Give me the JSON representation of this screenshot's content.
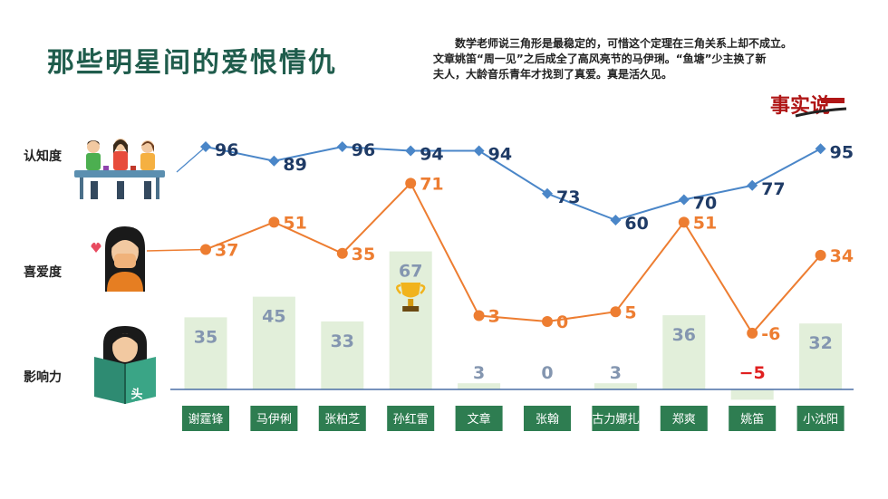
{
  "title": "那些明星间的爱恨情仇",
  "description": {
    "line1": "数学老师说三角形是最稳定的，可惜这个定理在三角关系上却不成立。",
    "line2": "文章姚笛“周一见”之后成全了高风亮节的马伊琍。“鱼塘”少主换了新",
    "line3": "夫人，大龄音乐青年才找到了真爱。真是活久见。"
  },
  "logo_text": "事实说",
  "row_labels": {
    "awareness": "认知度",
    "likability": "喜爱度",
    "influence": "影响力"
  },
  "book_text": "头条",
  "colors": {
    "awareness": "#4a86c8",
    "likability": "#ed7d31",
    "bar": "#e2efda",
    "category": "#2e7d51",
    "title": "#1f5c4c",
    "negative_label": "#e02020"
  },
  "chart_data": {
    "type": "line",
    "categories": [
      "谢霆锋",
      "马伊俐",
      "张柏芝",
      "孙红雷",
      "文章",
      "张翰",
      "古力娜扎",
      "郑爽",
      "姚笛",
      "小沈阳"
    ],
    "series": [
      {
        "name": "认知度",
        "type": "line",
        "values": [
          96,
          89,
          96,
          94,
          94,
          73,
          60,
          70,
          77,
          95
        ]
      },
      {
        "name": "喜爱度",
        "type": "line",
        "values": [
          37,
          51,
          35,
          71,
          3,
          0,
          5,
          51,
          -6,
          34
        ]
      },
      {
        "name": "影响力",
        "type": "bar",
        "values": [
          35,
          45,
          33,
          67,
          3,
          0,
          3,
          36,
          -5,
          32
        ]
      }
    ],
    "annotations": [
      "trophy-icon above 孙红雷"
    ]
  }
}
